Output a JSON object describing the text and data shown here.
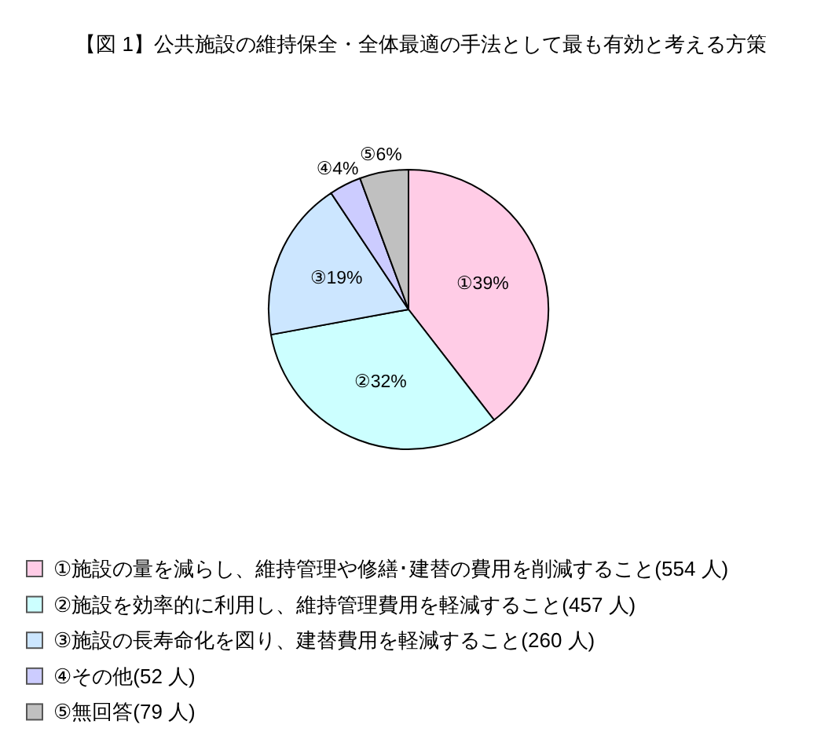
{
  "chart_data": {
    "type": "pie",
    "title": "【図 1】公共施設の維持保全・全体最適の手法として最も有効と考える方策",
    "categories": [
      "①施設の量を減らし、維持管理や修繕･建替の費用を削減すること(554 人)",
      "②施設を効率的に利用し、維持管理費用を軽減すること(457 人)",
      "③施設の長寿命化を図り、建替費用を軽減すること(260 人)",
      "④その他(52 人)",
      "⑤無回答(79 人)"
    ],
    "values": [
      554,
      457,
      260,
      52,
      79
    ],
    "value_labels": [
      "①39%",
      "②32%",
      "③19%",
      "④4%",
      "⑤6%"
    ],
    "colors": [
      "#ffcce6",
      "#ccffff",
      "#cce6ff",
      "#ccccff",
      "#c0c0c0"
    ],
    "legend": "bottom"
  }
}
